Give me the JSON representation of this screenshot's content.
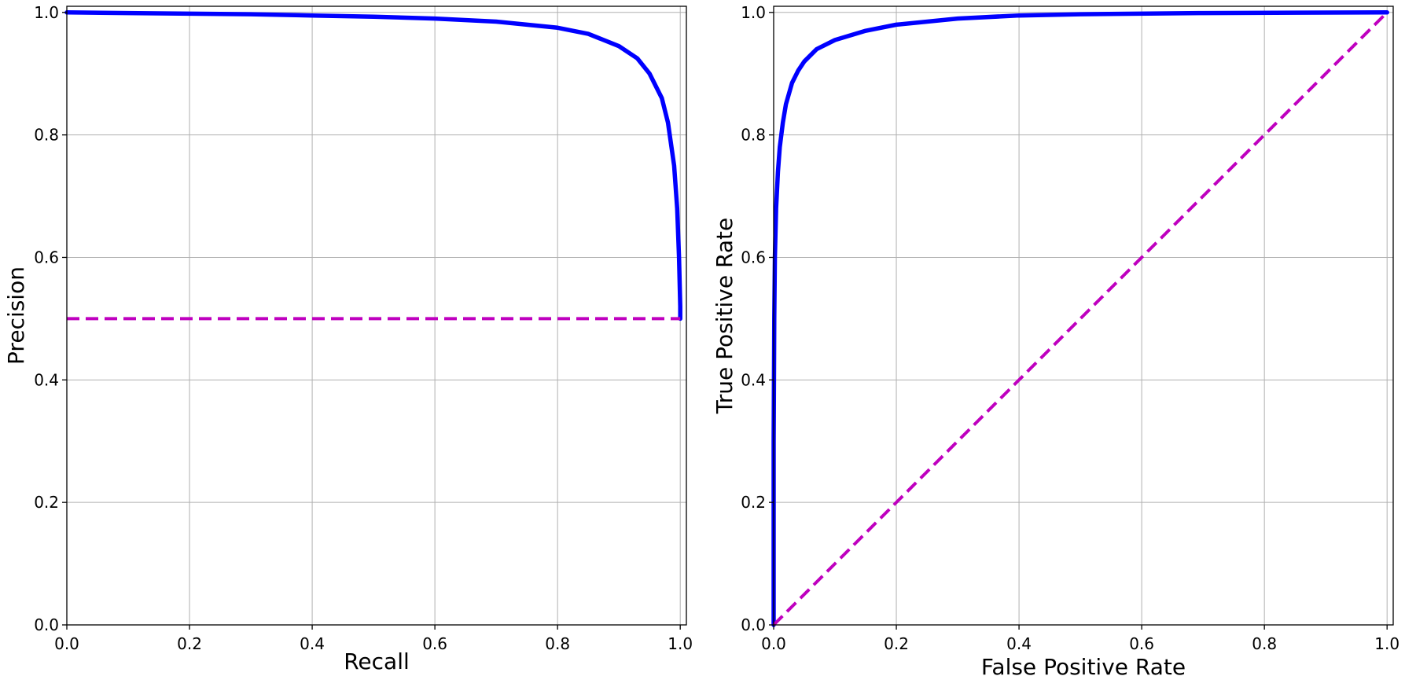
{
  "chart_data": [
    {
      "type": "line",
      "xlabel": "Recall",
      "ylabel": "Precision",
      "xlim": [
        0,
        1.01
      ],
      "ylim": [
        0,
        1.01
      ],
      "xticks": [
        "0.0",
        "0.2",
        "0.4",
        "0.6",
        "0.8",
        "1.0"
      ],
      "yticks": [
        "0.0",
        "0.2",
        "0.4",
        "0.6",
        "0.8",
        "1.0"
      ],
      "grid": true,
      "series": [
        {
          "style": "solid",
          "color": "#0000ff",
          "x": [
            0,
            0.1,
            0.2,
            0.3,
            0.4,
            0.5,
            0.6,
            0.7,
            0.75,
            0.8,
            0.85,
            0.9,
            0.93,
            0.95,
            0.97,
            0.98,
            0.99,
            0.995,
            0.998,
            1.0,
            1.0
          ],
          "y": [
            1.0,
            0.999,
            0.998,
            0.997,
            0.995,
            0.993,
            0.99,
            0.985,
            0.98,
            0.975,
            0.965,
            0.945,
            0.925,
            0.9,
            0.86,
            0.82,
            0.75,
            0.68,
            0.6,
            0.52,
            0.5
          ]
        },
        {
          "style": "dashed",
          "color": "#bf00bf",
          "x": [
            0,
            1.0
          ],
          "y": [
            0.5,
            0.5
          ]
        }
      ]
    },
    {
      "type": "line",
      "xlabel": "False Positive Rate",
      "ylabel": "True Positive Rate",
      "xlim": [
        0,
        1.01
      ],
      "ylim": [
        0,
        1.01
      ],
      "xticks": [
        "0.0",
        "0.2",
        "0.4",
        "0.6",
        "0.8",
        "1.0"
      ],
      "yticks": [
        "0.0",
        "0.2",
        "0.4",
        "0.6",
        "0.8",
        "1.0"
      ],
      "grid": true,
      "series": [
        {
          "style": "solid",
          "color": "#0000ff",
          "x": [
            0,
            0,
            0.001,
            0.002,
            0.004,
            0.007,
            0.01,
            0.015,
            0.02,
            0.03,
            0.04,
            0.05,
            0.07,
            0.1,
            0.15,
            0.2,
            0.3,
            0.4,
            0.5,
            0.7,
            1.0
          ],
          "y": [
            0,
            0.3,
            0.5,
            0.6,
            0.68,
            0.74,
            0.78,
            0.82,
            0.85,
            0.885,
            0.905,
            0.92,
            0.94,
            0.955,
            0.97,
            0.98,
            0.99,
            0.995,
            0.997,
            0.999,
            1.0
          ]
        },
        {
          "style": "dashed",
          "color": "#bf00bf",
          "x": [
            0,
            1.0
          ],
          "y": [
            0,
            1.0
          ]
        }
      ]
    }
  ]
}
